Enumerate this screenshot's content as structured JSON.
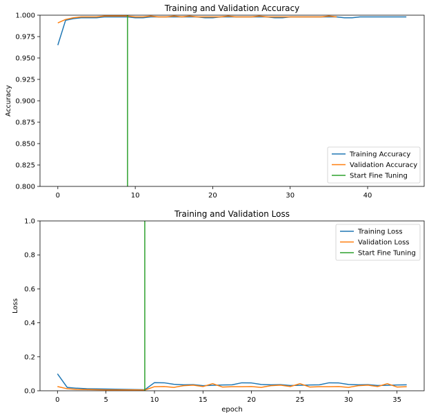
{
  "chart_data": [
    {
      "type": "line",
      "title": "Training and Validation Accuracy",
      "xlabel": "",
      "ylabel": "Accuracy",
      "xlim": [
        -2.3,
        47.3
      ],
      "ylim": [
        0.8,
        1.0
      ],
      "xticks": [
        0,
        10,
        20,
        30,
        40
      ],
      "yticks": [
        0.8,
        0.825,
        0.85,
        0.875,
        0.9,
        0.925,
        0.95,
        0.975,
        1.0
      ],
      "ytick_labels": [
        "0.800",
        "0.825",
        "0.850",
        "0.875",
        "0.900",
        "0.925",
        "0.950",
        "0.975",
        "1.000"
      ],
      "legend_position": "lower-right",
      "series": [
        {
          "name": "Training Accuracy",
          "color": "#1f77b4",
          "x": [
            0,
            1,
            2,
            3,
            4,
            5,
            6,
            7,
            8,
            9,
            10,
            11,
            12,
            13,
            14,
            15,
            16,
            17,
            18,
            19,
            20,
            21,
            22,
            23,
            24,
            25,
            26,
            27,
            28,
            29,
            30,
            31,
            32,
            33,
            34,
            35,
            36,
            37,
            38,
            39,
            40,
            41,
            42,
            43,
            44,
            45
          ],
          "values": [
            0.965,
            0.994,
            0.996,
            0.997,
            0.997,
            0.997,
            0.998,
            0.998,
            0.998,
            0.998,
            0.997,
            0.997,
            0.998,
            0.998,
            0.998,
            0.998,
            0.998,
            0.998,
            0.998,
            0.997,
            0.997,
            0.998,
            0.998,
            0.998,
            0.998,
            0.998,
            0.998,
            0.998,
            0.997,
            0.997,
            0.998,
            0.998,
            0.998,
            0.998,
            0.998,
            0.998,
            0.998,
            0.997,
            0.997,
            0.998,
            0.998,
            0.998,
            0.998,
            0.998,
            0.998,
            0.998
          ]
        },
        {
          "name": "Validation Accuracy",
          "color": "#ff7f0e",
          "x": [
            0,
            1,
            2,
            3,
            4,
            5,
            6,
            7,
            8,
            9,
            10,
            11,
            12,
            13,
            14,
            15,
            16,
            17,
            18,
            19,
            20,
            21,
            22,
            23,
            24,
            25,
            26,
            27,
            28,
            29,
            30,
            31,
            32,
            33,
            34,
            35,
            36
          ],
          "values": [
            0.991,
            0.995,
            0.997,
            0.998,
            0.998,
            0.998,
            0.999,
            0.999,
            0.999,
            0.999,
            0.998,
            0.998,
            0.999,
            0.998,
            0.998,
            0.999,
            0.998,
            0.999,
            0.998,
            0.998,
            0.998,
            0.998,
            0.999,
            0.998,
            0.998,
            0.998,
            0.999,
            0.998,
            0.998,
            0.998,
            0.998,
            0.998,
            0.998,
            0.998,
            0.998,
            0.999,
            0.998
          ]
        }
      ],
      "vline": {
        "name": "Start Fine Tuning",
        "color": "#2ca02c",
        "x": 9
      }
    },
    {
      "type": "line",
      "title": "Training and Validation Loss",
      "xlabel": "epoch",
      "ylabel": "Loss",
      "xlim": [
        -1.8,
        37.8
      ],
      "ylim": [
        0,
        1.0
      ],
      "xticks": [
        0,
        5,
        10,
        15,
        20,
        25,
        30,
        35
      ],
      "yticks": [
        0,
        0.2,
        0.4,
        0.6,
        0.8,
        1.0
      ],
      "ytick_labels": [
        "0.0",
        "0.2",
        "0.4",
        "0.6",
        "0.8",
        "1.0"
      ],
      "legend_position": "upper-right",
      "series": [
        {
          "name": "Training Loss",
          "color": "#1f77b4",
          "x": [
            0,
            1,
            2,
            3,
            4,
            5,
            6,
            7,
            8,
            9,
            10,
            11,
            12,
            13,
            14,
            15,
            16,
            17,
            18,
            19,
            20,
            21,
            22,
            23,
            24,
            25,
            26,
            27,
            28,
            29,
            30,
            31,
            32,
            33,
            34,
            35,
            36
          ],
          "values": [
            0.1,
            0.02,
            0.015,
            0.012,
            0.011,
            0.01,
            0.009,
            0.008,
            0.007,
            0.006,
            0.048,
            0.047,
            0.038,
            0.035,
            0.036,
            0.03,
            0.032,
            0.034,
            0.035,
            0.047,
            0.046,
            0.037,
            0.035,
            0.036,
            0.031,
            0.032,
            0.034,
            0.035,
            0.047,
            0.046,
            0.037,
            0.035,
            0.036,
            0.031,
            0.032,
            0.034,
            0.035
          ]
        },
        {
          "name": "Validation Loss",
          "color": "#ff7f0e",
          "x": [
            0,
            1,
            2,
            3,
            4,
            5,
            6,
            7,
            8,
            9,
            10,
            11,
            12,
            13,
            14,
            15,
            16,
            17,
            18,
            19,
            20,
            21,
            22,
            23,
            24,
            25,
            26,
            27,
            28,
            29,
            30,
            31,
            32,
            33,
            34,
            35,
            36
          ],
          "values": [
            0.025,
            0.012,
            0.008,
            0.007,
            0.006,
            0.005,
            0.005,
            0.005,
            0.005,
            0.004,
            0.024,
            0.025,
            0.02,
            0.03,
            0.033,
            0.025,
            0.042,
            0.022,
            0.024,
            0.024,
            0.025,
            0.02,
            0.03,
            0.033,
            0.025,
            0.042,
            0.022,
            0.024,
            0.024,
            0.025,
            0.02,
            0.03,
            0.033,
            0.025,
            0.042,
            0.022,
            0.024
          ]
        }
      ],
      "vline": {
        "name": "Start Fine Tuning",
        "color": "#2ca02c",
        "x": 9
      }
    }
  ]
}
